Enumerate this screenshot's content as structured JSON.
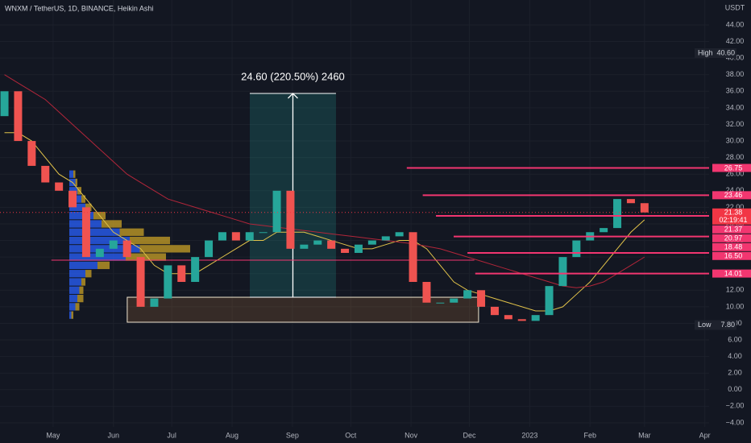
{
  "chart_data": {
    "type": "candlestick",
    "title": "WNXM / TetherUS, 1D, BINANCE, Heikin Ashi",
    "currency": "USDT",
    "x": [
      -25,
      -18,
      -11,
      -4,
      3,
      10,
      17,
      24,
      31,
      38,
      45,
      52,
      59,
      66,
      73,
      80,
      87,
      94,
      101,
      108,
      115,
      122,
      129,
      136,
      143,
      150,
      157,
      164,
      171,
      178,
      185,
      192,
      199,
      206,
      213,
      220,
      227,
      234,
      241,
      248,
      255,
      262,
      269,
      276,
      283,
      290,
      297,
      304
    ],
    "open": [
      33,
      36,
      30,
      27,
      25,
      24,
      22,
      16,
      17,
      18,
      16,
      10,
      11,
      15,
      13,
      16,
      18,
      19,
      18,
      19,
      19,
      24,
      17,
      17.5,
      18,
      17,
      16.5,
      17.5,
      18,
      18.5,
      19,
      13,
      10.5,
      10.5,
      11,
      12,
      10,
      9,
      8.5,
      8.3,
      9,
      12.5,
      16,
      18,
      19,
      19.5,
      23,
      22.5
    ],
    "high": {
      "label": "High",
      "value": 40.6,
      "value_label": "40.60"
    },
    "low": {
      "label": "Low",
      "value": 7.8,
      "value_label": "7.80"
    },
    "close": [
      36,
      30,
      27,
      25,
      24,
      22,
      16,
      17,
      18,
      16,
      10,
      11,
      15,
      13,
      16,
      18,
      19,
      18,
      19,
      19,
      24,
      17,
      17.5,
      18,
      17,
      16.5,
      17.5,
      18,
      18.5,
      19,
      13,
      10.5,
      10.5,
      11,
      12,
      10,
      9,
      8.5,
      8.3,
      9,
      12.5,
      16,
      18,
      19,
      19.5,
      23,
      22.5,
      21.38
    ],
    "up_color": "#26a69a",
    "down_color": "#ef5350",
    "moving_averages": [
      {
        "color": "#e2c34a",
        "values": [
          31,
          31,
          30,
          28,
          26,
          25,
          23,
          21,
          19,
          18,
          17,
          15,
          14,
          14,
          14,
          15,
          16,
          17,
          18,
          18,
          19,
          19,
          19,
          18.5,
          18,
          17.5,
          17,
          17,
          17.5,
          18,
          18,
          17,
          15,
          13,
          12,
          11.5,
          11,
          10.5,
          10,
          9.5,
          9.5,
          10,
          11.5,
          13,
          15,
          17,
          19,
          20.5
        ]
      },
      {
        "color": "#b2263a",
        "values": [
          38,
          37,
          36,
          35,
          33.5,
          32,
          30.5,
          29,
          27.5,
          26,
          25,
          24,
          23,
          22.5,
          22,
          21.5,
          21,
          20.5,
          20,
          19.8,
          19.6,
          19.4,
          19.2,
          19,
          18.8,
          18.6,
          18.4,
          18.2,
          18,
          17.8,
          17.6,
          17.3,
          17,
          16.5,
          16,
          15.5,
          15,
          14.5,
          14,
          13.5,
          13,
          12.5,
          12.3,
          12.5,
          13,
          14,
          15,
          16
        ]
      }
    ],
    "volume_profile": {
      "prices": [
        26,
        25,
        24,
        23,
        22,
        21,
        20,
        19,
        18,
        17,
        16,
        15,
        14,
        13,
        12,
        11,
        10,
        9
      ],
      "buy": [
        2,
        3,
        4,
        6,
        8,
        12,
        16,
        25,
        30,
        35,
        28,
        14,
        8,
        6,
        5,
        4,
        3,
        1
      ],
      "sell": [
        1,
        1,
        2,
        2,
        3,
        6,
        10,
        12,
        20,
        25,
        20,
        6,
        3,
        2,
        2,
        3,
        2,
        1
      ],
      "buy_color": "#2962ff",
      "sell_color": "#c9a227"
    },
    "xlim": [
      -27.3,
      337.2
    ],
    "xticks": [
      {
        "value": 0,
        "label": "May"
      },
      {
        "value": 31,
        "label": "Jun"
      },
      {
        "value": 61,
        "label": "Jul"
      },
      {
        "value": 92,
        "label": "Aug"
      },
      {
        "value": 123,
        "label": "Sep"
      },
      {
        "value": 153,
        "label": "Oct"
      },
      {
        "value": 184,
        "label": "Nov"
      },
      {
        "value": 214,
        "label": "Dec"
      },
      {
        "value": 245,
        "label": "2023"
      },
      {
        "value": 276,
        "label": "Feb"
      },
      {
        "value": 304,
        "label": "Mar"
      },
      {
        "value": 335,
        "label": "Apr"
      }
    ],
    "ylim": [
      -4.49,
      47.01
    ],
    "yticks": [
      {
        "value": 44,
        "label": "44.00"
      },
      {
        "value": 42,
        "label": "42.00"
      },
      {
        "value": 40,
        "label": "40.00"
      },
      {
        "value": 38,
        "label": "38.00"
      },
      {
        "value": 36,
        "label": "36.00"
      },
      {
        "value": 34,
        "label": "34.00"
      },
      {
        "value": 32,
        "label": "32.00"
      },
      {
        "value": 30,
        "label": "30.00"
      },
      {
        "value": 28,
        "label": "28.00"
      },
      {
        "value": 26,
        "label": "26.00"
      },
      {
        "value": 24,
        "label": "24.00"
      },
      {
        "value": 22,
        "label": "22.00"
      },
      {
        "value": 20,
        "label": "20.00"
      },
      {
        "value": 18,
        "label": "18.00"
      },
      {
        "value": 16,
        "label": "16.00"
      },
      {
        "value": 14,
        "label": "14.00"
      },
      {
        "value": 12,
        "label": "12.00"
      },
      {
        "value": 10,
        "label": "10.00"
      },
      {
        "value": 8,
        "label": "8.00"
      },
      {
        "value": 6,
        "label": "6.00"
      },
      {
        "value": 4,
        "label": "4.00"
      },
      {
        "value": 2,
        "label": "2.00"
      },
      {
        "value": 0,
        "label": "0.00"
      },
      {
        "value": -2,
        "label": "−2.00"
      },
      {
        "value": -4,
        "label": "−4.00"
      }
    ],
    "grid": true,
    "levels": {
      "values": [
        26.75,
        23.46,
        21.37,
        20.97,
        18.48,
        16.5,
        14.01
      ],
      "value_labels": [
        "26.75",
        "23.46",
        "21.37",
        "20.97",
        "18.48",
        "16.50",
        "14.01"
      ],
      "start": [
        181.8,
        190,
        null,
        196.8,
        205.9,
        213,
        217
      ],
      "color": "#f23670"
    },
    "support_line": {
      "value": 15.62,
      "start": -0.9,
      "end": 216.5,
      "color": "#f23670"
    },
    "current_price": {
      "value": 21.38,
      "label": "21.38",
      "countdown": "02:19:41"
    },
    "measure": {
      "label": "24.60 (220.50%) 2460",
      "top": 35.74,
      "bottom": 11.15,
      "start": 101.1,
      "end": 145.4
    },
    "range_box": {
      "top": 11.15,
      "bottom": 8.14,
      "start": 38.1,
      "end": 218.7
    }
  }
}
